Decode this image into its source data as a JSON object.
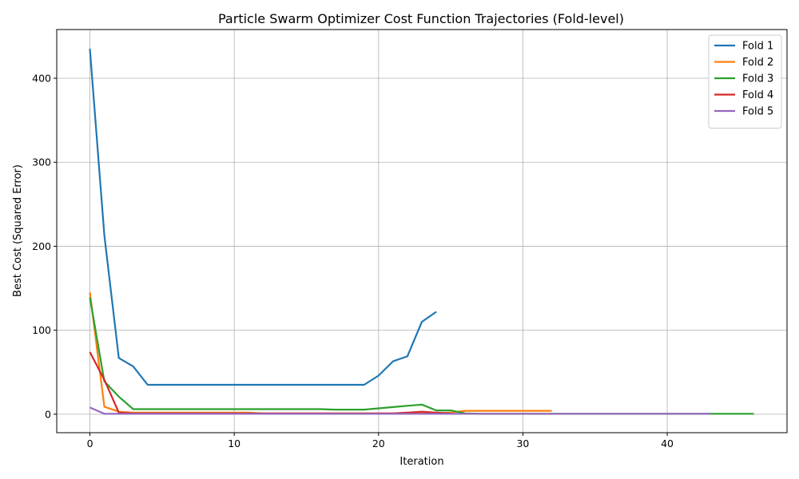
{
  "chart_data": {
    "type": "line",
    "title": "Particle Swarm Optimizer Cost Function Trajectories (Fold-level)",
    "xlabel": "Iteration",
    "ylabel": "Best Cost (Squared Error)",
    "xlim": [
      -2.3,
      48.3
    ],
    "ylim": [
      -22,
      458
    ],
    "xticks": [
      0,
      10,
      20,
      30,
      40
    ],
    "yticks": [
      0,
      100,
      200,
      300,
      400
    ],
    "grid": true,
    "legend_position": "top-right",
    "series": [
      {
        "name": "Fold 1",
        "color": "#1f77b4",
        "x": [
          0,
          1,
          2,
          3,
          4,
          5,
          6,
          7,
          8,
          9,
          10,
          11,
          12,
          13,
          14,
          15,
          16,
          17,
          18,
          19,
          20,
          21,
          22,
          23,
          24
        ],
        "y": [
          435,
          213,
          67,
          57,
          35,
          35,
          35,
          35,
          35,
          35,
          35,
          35,
          35,
          35,
          35,
          35,
          35,
          35,
          35,
          35,
          46,
          63,
          69,
          110,
          122
        ]
      },
      {
        "name": "Fold 2",
        "color": "#ff7f0e",
        "x": [
          0,
          1,
          2,
          3,
          4,
          5,
          6,
          7,
          8,
          9,
          10,
          11,
          12,
          13,
          14,
          15,
          16,
          17,
          18,
          19,
          20,
          21,
          22,
          23,
          24,
          25,
          26,
          27,
          28,
          29,
          30,
          31,
          32
        ],
        "y": [
          145,
          9,
          3,
          2,
          2,
          2,
          2,
          2,
          2,
          2,
          2,
          2,
          1,
          1,
          1,
          1,
          1,
          1,
          1,
          1,
          1,
          1,
          1,
          1,
          1,
          2,
          4,
          4,
          4,
          4,
          4,
          4,
          4
        ]
      },
      {
        "name": "Fold 3",
        "color": "#2ca02c",
        "x": [
          0,
          1,
          2,
          3,
          4,
          5,
          6,
          7,
          8,
          9,
          10,
          11,
          12,
          13,
          14,
          15,
          16,
          17,
          18,
          19,
          20,
          21,
          22,
          23,
          24,
          25,
          26,
          27,
          28,
          29,
          30,
          31,
          32,
          33,
          34,
          35,
          36,
          37,
          38,
          39,
          40,
          41,
          42,
          43,
          44,
          45,
          46
        ],
        "y": [
          139,
          39,
          21,
          6,
          6,
          6,
          6,
          6,
          6,
          6,
          6,
          6,
          6,
          6,
          6,
          6,
          6,
          5.5,
          5.5,
          5.5,
          7,
          8.5,
          10,
          11.5,
          4.5,
          4.5,
          1,
          0.5,
          0.5,
          0.5,
          0.5,
          0.5,
          0.5,
          0.5,
          0.5,
          0.5,
          0.5,
          0.5,
          0.5,
          0.5,
          0.5,
          0.5,
          0.5,
          0.5,
          0.5,
          0.5,
          0.5
        ]
      },
      {
        "name": "Fold 4",
        "color": "#d62728",
        "x": [
          0,
          1,
          2,
          3,
          4,
          5,
          6,
          7,
          8,
          9,
          10,
          11,
          12,
          13,
          14,
          15,
          16,
          17,
          18,
          19,
          20,
          21,
          22,
          23,
          24,
          25
        ],
        "y": [
          74,
          41,
          2,
          1,
          1,
          1,
          1,
          1,
          1,
          1,
          1,
          1,
          1,
          1,
          1,
          1,
          1,
          1,
          1,
          1,
          1,
          1,
          2,
          3,
          2,
          1
        ]
      },
      {
        "name": "Fold 5",
        "color": "#9467bd",
        "x": [
          0,
          1,
          2,
          3,
          4,
          5,
          6,
          7,
          8,
          9,
          10,
          11,
          12,
          13,
          14,
          15,
          16,
          17,
          18,
          19,
          20,
          21,
          22,
          23,
          24,
          25,
          26,
          27,
          28,
          29,
          30,
          31,
          32,
          33,
          34,
          35,
          36,
          37,
          38,
          39,
          40,
          41,
          42,
          43
        ],
        "y": [
          8,
          0.5,
          0.5,
          0.5,
          0.5,
          0.5,
          0.5,
          0.5,
          0.5,
          0.5,
          0.5,
          0.5,
          0.5,
          0.5,
          0.5,
          0.5,
          0.5,
          0.5,
          0.5,
          0.5,
          0.5,
          0.5,
          0.5,
          0.5,
          0.5,
          0.5,
          0.5,
          0.5,
          0.5,
          0.5,
          0.5,
          0.5,
          0.5,
          0.5,
          0.5,
          0.5,
          0.5,
          0.5,
          0.5,
          0.5,
          0.5,
          0.5,
          0.5,
          0.5
        ]
      }
    ]
  }
}
